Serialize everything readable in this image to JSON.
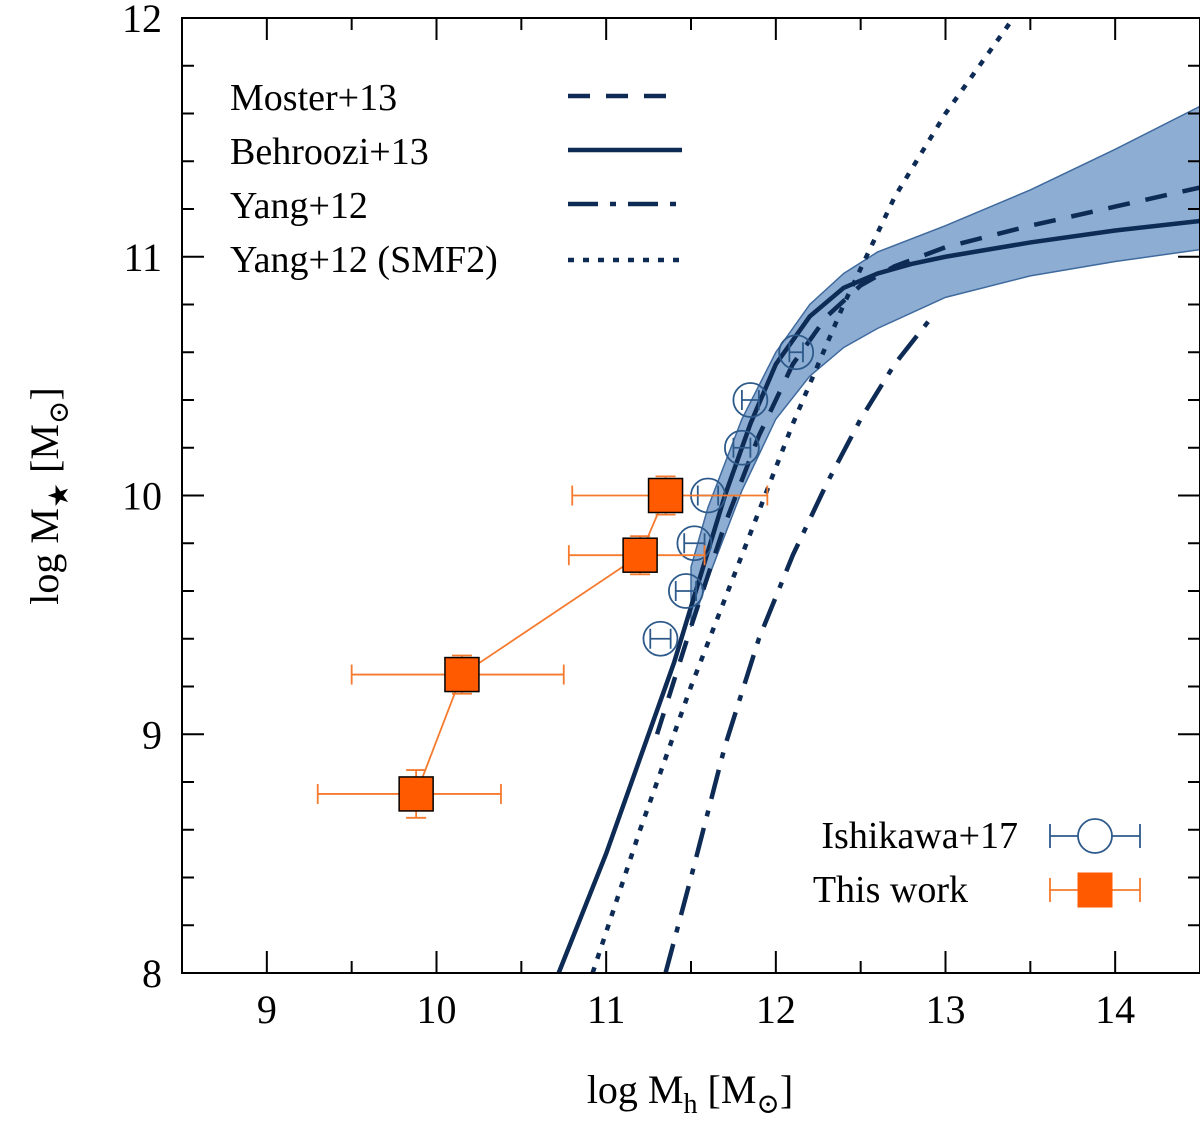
{
  "chart_data": {
    "type": "line",
    "x_axis": {
      "label_main": "log M",
      "label_sub": "h",
      "label_unit": "[M",
      "label_close": "]",
      "range": [
        8.5,
        14.5
      ],
      "ticks": [
        9,
        10,
        11,
        12,
        13,
        14
      ]
    },
    "y_axis": {
      "label_main": "log M",
      "label_sub": "★",
      "label_unit": "[M",
      "label_close": "]",
      "range": [
        8,
        12
      ],
      "ticks": [
        8,
        9,
        10,
        11,
        12
      ]
    },
    "colors": {
      "model": "#0d2b55",
      "band_fill": "#8eadd2",
      "band_edge": "#3f6a9e",
      "ishikawa": "#2d5a8a",
      "this_work": "#ff5a00",
      "this_work_line": "#f57a2e"
    },
    "legend_top": [
      {
        "label": "Moster+13",
        "style": "dashed"
      },
      {
        "label": "Behroozi+13",
        "style": "solid"
      },
      {
        "label": "Yang+12",
        "style": "dashdot"
      },
      {
        "label": "Yang+12 (SMF2)",
        "style": "dotted"
      }
    ],
    "legend_bottom": [
      {
        "label": "Ishikawa+17",
        "marker": "open-circle"
      },
      {
        "label": "This work",
        "marker": "filled-square"
      }
    ],
    "series": [
      {
        "name": "Moster+13",
        "style": "dashed",
        "x": [
          11.3,
          11.5,
          11.7,
          11.9,
          12.1,
          12.3,
          12.5,
          12.7,
          13.0,
          13.5,
          14.0,
          14.5
        ],
        "y": [
          9.0,
          9.45,
          9.88,
          10.25,
          10.55,
          10.75,
          10.88,
          10.96,
          11.04,
          11.13,
          11.21,
          11.29
        ]
      },
      {
        "name": "Behroozi+13",
        "style": "solid",
        "x": [
          10.72,
          11.0,
          11.2,
          11.4,
          11.55,
          11.7,
          11.85,
          12.0,
          12.2,
          12.4,
          12.6,
          12.8,
          13.0,
          13.5,
          14.0,
          14.5
        ],
        "y": [
          8.0,
          8.5,
          8.9,
          9.3,
          9.65,
          10.0,
          10.3,
          10.55,
          10.75,
          10.87,
          10.93,
          10.97,
          11.0,
          11.06,
          11.11,
          11.15
        ]
      },
      {
        "name": "Yang+12",
        "style": "dashdot",
        "x": [
          11.35,
          11.5,
          11.7,
          11.9,
          12.1,
          12.3,
          12.5,
          12.7,
          12.9
        ],
        "y": [
          8.0,
          8.4,
          8.95,
          9.4,
          9.75,
          10.05,
          10.32,
          10.55,
          10.73
        ]
      },
      {
        "name": "Yang+12 (SMF2)",
        "style": "dotted",
        "x": [
          10.92,
          11.2,
          11.5,
          11.8,
          12.1,
          12.4,
          12.7,
          13.0,
          13.4
        ],
        "y": [
          8.0,
          8.6,
          9.2,
          9.75,
          10.3,
          10.8,
          11.25,
          11.6,
          12.0
        ]
      }
    ],
    "band": {
      "x": [
        11.5,
        11.6,
        11.8,
        12.0,
        12.2,
        12.4,
        12.6,
        13.0,
        13.5,
        14.0,
        14.5
      ],
      "upper": [
        9.7,
        9.95,
        10.32,
        10.6,
        10.8,
        10.93,
        11.02,
        11.13,
        11.28,
        11.45,
        11.63
      ],
      "lower": [
        9.45,
        9.65,
        10.02,
        10.32,
        10.5,
        10.62,
        10.7,
        10.83,
        10.92,
        10.98,
        11.03
      ]
    },
    "ishikawa": {
      "x": [
        11.32,
        11.47,
        11.52,
        11.6,
        11.8,
        11.85,
        12.12
      ],
      "y": [
        9.4,
        9.6,
        9.8,
        10.0,
        10.2,
        10.4,
        10.6
      ],
      "xerr": [
        0.06,
        0.06,
        0.06,
        0.06,
        0.05,
        0.05,
        0.04
      ]
    },
    "this_work": {
      "x": [
        9.88,
        10.15,
        11.2,
        11.35
      ],
      "y": [
        8.75,
        9.25,
        9.75,
        10.0
      ],
      "xerr_low": [
        0.58,
        0.65,
        0.42,
        0.55
      ],
      "xerr_high": [
        0.5,
        0.6,
        0.38,
        0.6
      ],
      "yerr": [
        0.1,
        0.08,
        0.08,
        0.08
      ]
    }
  }
}
